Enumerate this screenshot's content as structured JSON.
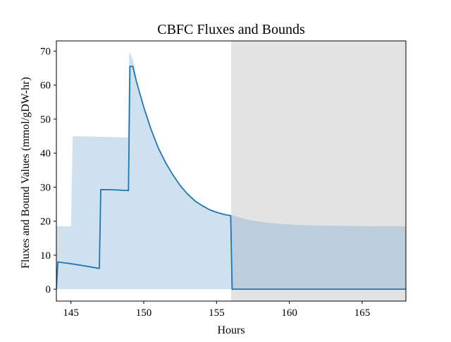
{
  "chart_data": {
    "type": "line",
    "title": "CBFC Fluxes and Bounds",
    "xlabel": "Hours",
    "ylabel": "Fluxes and Bound Values (mmol/gDW-hr)",
    "xlim": [
      144,
      168
    ],
    "ylim": [
      -3.5,
      73
    ],
    "xticks": [
      145,
      150,
      155,
      160,
      165
    ],
    "yticks": [
      0,
      10,
      20,
      30,
      40,
      50,
      60,
      70
    ],
    "grid": false,
    "legend": "none",
    "colors": {
      "flux_line": "#1f77b4",
      "bound_band": "#cfe1ef",
      "shaded_region": "#e3e3e3",
      "shaded_overlap": "#bccedb"
    },
    "shaded_x_range": [
      156,
      168
    ],
    "series": [
      {
        "kind": "line",
        "points": [
          [
            144.0,
            0.0
          ],
          [
            144.1,
            8.0
          ],
          [
            145.0,
            7.5
          ],
          [
            146.0,
            6.8
          ],
          [
            146.95,
            6.1
          ],
          [
            147.05,
            29.3
          ],
          [
            148.0,
            29.2
          ],
          [
            148.95,
            29.0
          ],
          [
            149.05,
            65.5
          ],
          [
            149.25,
            65.5
          ],
          [
            149.5,
            61.0
          ],
          [
            150.0,
            53.5
          ],
          [
            150.5,
            47.0
          ],
          [
            151.0,
            41.5
          ],
          [
            151.5,
            37.2
          ],
          [
            152.0,
            33.6
          ],
          [
            152.5,
            30.5
          ],
          [
            153.0,
            28.0
          ],
          [
            153.5,
            26.0
          ],
          [
            154.0,
            24.6
          ],
          [
            154.5,
            23.4
          ],
          [
            155.0,
            22.6
          ],
          [
            155.5,
            22.0
          ],
          [
            155.97,
            21.6
          ],
          [
            156.07,
            0.0
          ],
          [
            168.0,
            0.0
          ]
        ]
      },
      {
        "kind": "band",
        "upper": [
          [
            144.0,
            18.5
          ],
          [
            145.0,
            18.5
          ],
          [
            145.12,
            45.0
          ],
          [
            147.0,
            44.8
          ],
          [
            148.9,
            44.6
          ],
          [
            149.0,
            70.0
          ],
          [
            149.3,
            67.0
          ],
          [
            149.5,
            61.3
          ],
          [
            150.0,
            54.0
          ],
          [
            150.5,
            47.3
          ],
          [
            151.0,
            41.8
          ],
          [
            151.5,
            37.4
          ],
          [
            152.0,
            33.8
          ],
          [
            152.5,
            30.7
          ],
          [
            153.0,
            28.2
          ],
          [
            153.5,
            26.2
          ],
          [
            154.0,
            24.8
          ],
          [
            154.5,
            23.6
          ],
          [
            155.0,
            22.8
          ],
          [
            155.5,
            22.2
          ],
          [
            156.0,
            21.8
          ],
          [
            157.0,
            20.6
          ],
          [
            158.0,
            19.8
          ],
          [
            159.0,
            19.3
          ],
          [
            160.0,
            19.0
          ],
          [
            162.0,
            18.7
          ],
          [
            164.0,
            18.6
          ],
          [
            166.0,
            18.5
          ],
          [
            168.0,
            18.5
          ]
        ],
        "lower": 0
      }
    ]
  }
}
